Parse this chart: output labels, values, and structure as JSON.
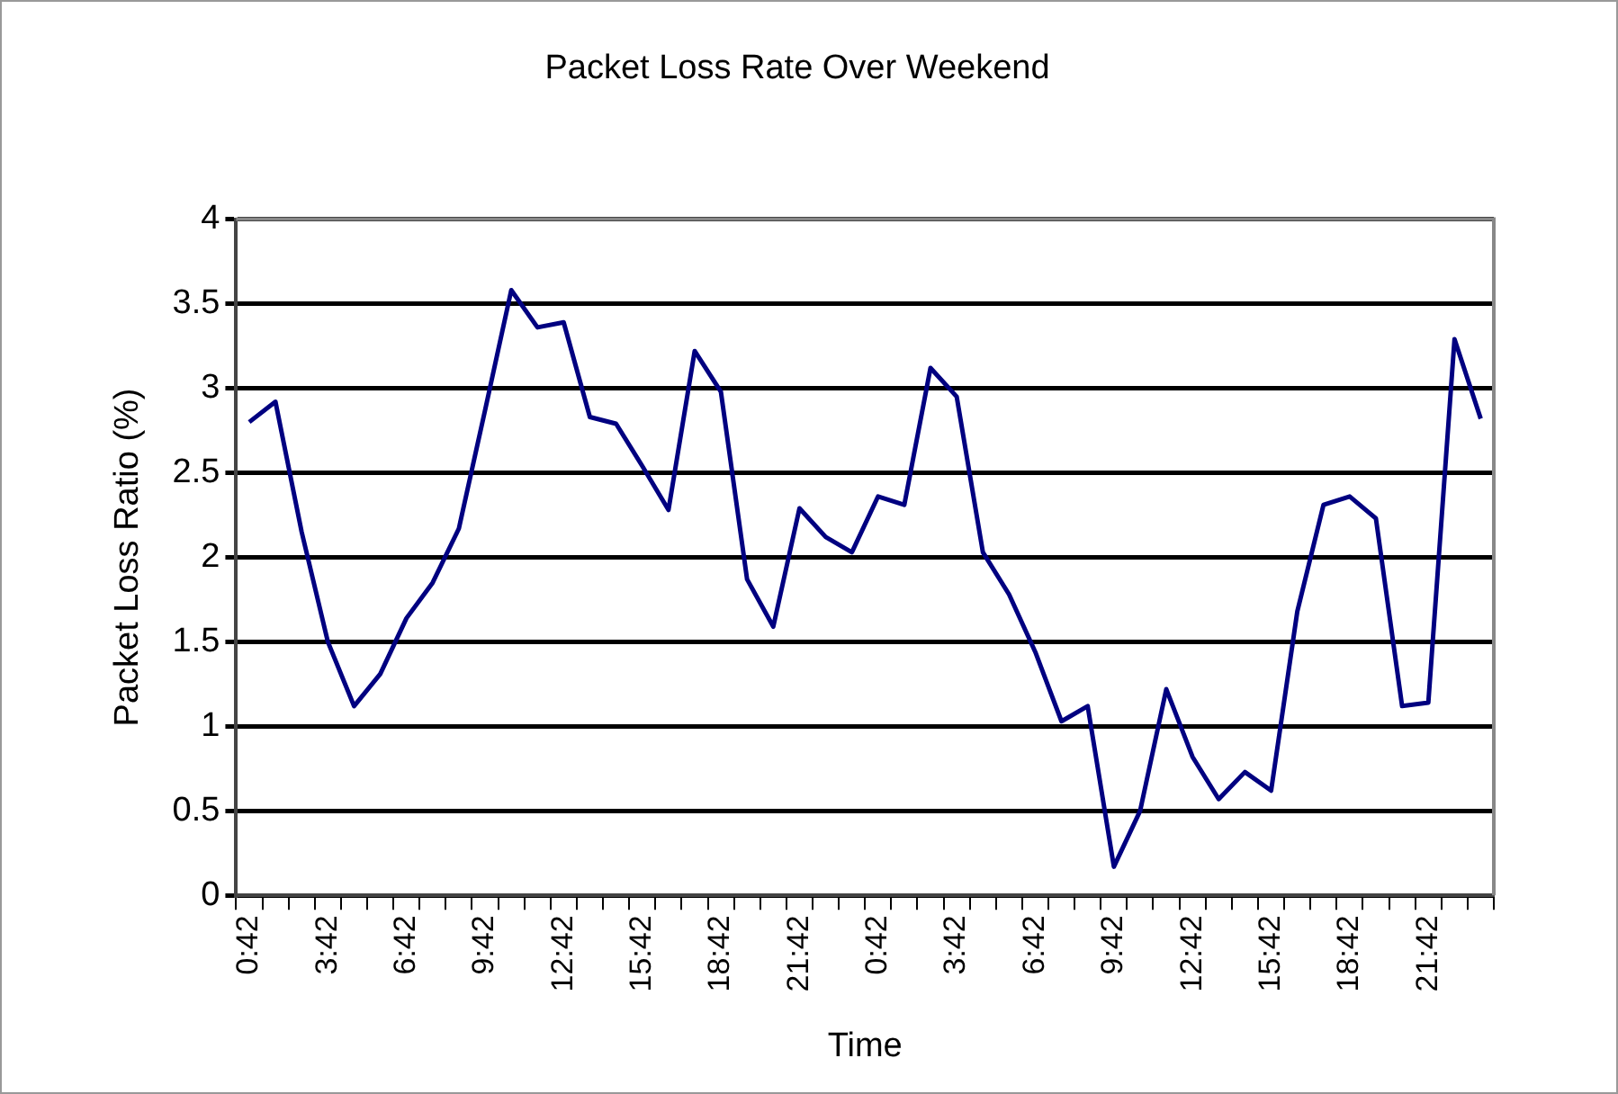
{
  "chart_data": {
    "type": "line",
    "title": "Packet Loss Rate Over Weekend",
    "xlabel": "Time",
    "ylabel": "Packet Loss Ratio (%)",
    "categories": [
      "0:42",
      null,
      null,
      "3:42",
      null,
      null,
      "6:42",
      null,
      null,
      "9:42",
      null,
      null,
      "12:42",
      null,
      null,
      "15:42",
      null,
      null,
      "18:42",
      null,
      null,
      "21:42",
      null,
      null,
      "0:42",
      null,
      null,
      "3:42",
      null,
      null,
      "6:42",
      null,
      null,
      "9:42",
      null,
      null,
      "12:42",
      null,
      null,
      "15:42",
      null,
      null,
      "18:42",
      null,
      null,
      "21:42",
      null,
      null
    ],
    "series": [
      {
        "color": "#000080",
        "values": [
          2.8,
          2.92,
          2.15,
          1.5,
          1.12,
          1.31,
          1.64,
          1.85,
          2.17,
          2.87,
          3.58,
          3.36,
          3.39,
          2.83,
          2.79,
          2.54,
          2.28,
          3.22,
          2.98,
          1.87,
          1.59,
          2.29,
          2.12,
          2.03,
          2.36,
          2.31,
          3.12,
          2.95,
          2.03,
          1.78,
          1.44,
          1.03,
          1.12,
          0.17,
          0.5,
          1.22,
          0.82,
          0.57,
          0.73,
          0.62,
          1.68,
          2.31,
          2.36,
          2.23,
          1.12,
          1.14,
          3.29,
          2.82
        ]
      }
    ],
    "ylim": [
      0,
      4
    ],
    "yticks": [
      0,
      0.5,
      1,
      1.5,
      2,
      2.5,
      3,
      3.5,
      4
    ],
    "grid": "y",
    "legend": false,
    "marker": "none",
    "line_style": "solid"
  }
}
